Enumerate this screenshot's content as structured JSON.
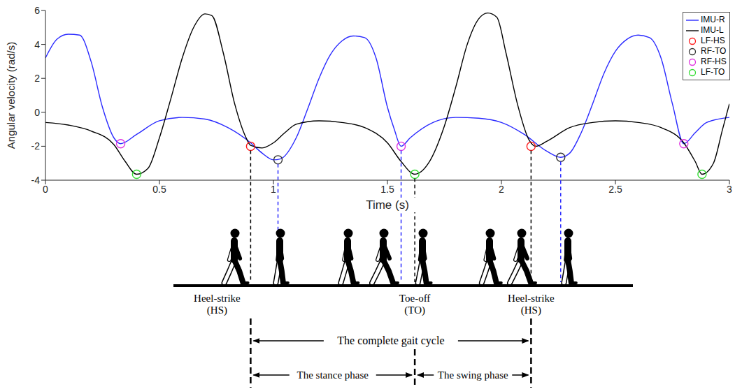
{
  "chart_data": {
    "type": "line",
    "x_label": "Time (s)",
    "y_label": "Angular velocity (rad/s)",
    "xlim": [
      0,
      3
    ],
    "xticks": [
      0,
      0.5,
      1,
      1.5,
      2,
      2.5,
      3
    ],
    "ylim": [
      -4,
      6
    ],
    "yticks": [
      -4,
      -2,
      0,
      2,
      4,
      6
    ],
    "grid": false,
    "legend": "upper right",
    "series": [
      {
        "name": "IMU-R",
        "color": "#2b2bff",
        "type": "line",
        "line_style": "solid",
        "x": [
          0,
          0.05,
          0.1,
          0.15,
          0.2,
          0.25,
          0.3,
          0.33,
          0.4,
          0.5,
          0.6,
          0.7,
          0.8,
          0.9,
          0.95,
          1.0,
          1.03,
          1.1,
          1.15,
          1.2,
          1.25,
          1.3,
          1.35,
          1.4,
          1.45,
          1.5,
          1.53,
          1.56,
          1.6,
          1.7,
          1.8,
          1.9,
          2.0,
          2.1,
          2.2,
          2.26,
          2.3,
          2.35,
          2.4,
          2.45,
          2.5,
          2.55,
          2.6,
          2.65,
          2.7,
          2.75,
          2.8,
          2.85,
          2.9,
          3.0
        ],
        "values": [
          3.2,
          4.3,
          4.6,
          4.55,
          3.0,
          0.3,
          -1.5,
          -1.85,
          -1.3,
          -0.5,
          -0.3,
          -0.4,
          -0.9,
          -1.8,
          -2.4,
          -2.8,
          -2.75,
          -1.5,
          0.2,
          2.0,
          3.4,
          4.2,
          4.5,
          4.4,
          3.2,
          0.3,
          -1.0,
          -2.0,
          -1.5,
          -0.6,
          -0.3,
          -0.35,
          -0.6,
          -1.3,
          -2.3,
          -2.65,
          -2.4,
          -1.2,
          0.5,
          2.3,
          3.6,
          4.3,
          4.55,
          4.4,
          3.2,
          0.5,
          -1.85,
          -1.2,
          -0.6,
          -0.3
        ]
      },
      {
        "name": "IMU-L",
        "color": "#000000",
        "type": "line",
        "line_style": "solid",
        "x": [
          0,
          0.1,
          0.2,
          0.3,
          0.35,
          0.4,
          0.45,
          0.5,
          0.55,
          0.6,
          0.65,
          0.7,
          0.73,
          0.78,
          0.83,
          0.88,
          0.9,
          0.95,
          1.0,
          1.05,
          1.1,
          1.2,
          1.3,
          1.4,
          1.5,
          1.56,
          1.62,
          1.68,
          1.75,
          1.8,
          1.85,
          1.9,
          1.94,
          1.98,
          2.02,
          2.07,
          2.12,
          2.15,
          2.2,
          2.3,
          2.4,
          2.5,
          2.6,
          2.7,
          2.8,
          2.85,
          2.88,
          2.93,
          2.97,
          3.0
        ],
        "values": [
          -0.6,
          -0.75,
          -1.1,
          -1.9,
          -2.9,
          -3.65,
          -3.3,
          -1.5,
          0.8,
          3.2,
          5.0,
          5.8,
          5.7,
          3.5,
          0.5,
          -1.5,
          -1.95,
          -2.1,
          -1.8,
          -1.2,
          -0.7,
          -0.5,
          -0.6,
          -0.9,
          -1.8,
          -2.9,
          -3.65,
          -3.0,
          -0.8,
          1.5,
          4.0,
          5.5,
          5.85,
          5.6,
          3.5,
          0.5,
          -1.6,
          -2.0,
          -1.7,
          -0.9,
          -0.6,
          -0.5,
          -0.6,
          -0.9,
          -1.8,
          -2.9,
          -3.65,
          -3.0,
          -1.0,
          0.5
        ]
      },
      {
        "name": "LF-HS",
        "color": "#ff1a1a",
        "type": "scatter",
        "marker": "circle",
        "x": [
          0.9,
          2.13
        ],
        "values": [
          -2.0,
          -2.0
        ]
      },
      {
        "name": "RF-TO",
        "color": "#333333",
        "type": "scatter",
        "marker": "circle",
        "x": [
          1.02,
          2.26
        ],
        "values": [
          -2.8,
          -2.65
        ]
      },
      {
        "name": "RF-HS",
        "color": "#e033e0",
        "type": "scatter",
        "marker": "circle",
        "x": [
          0.33,
          1.56,
          2.8
        ],
        "values": [
          -1.85,
          -2.0,
          -1.85
        ]
      },
      {
        "name": "LF-TO",
        "color": "#33dd33",
        "type": "scatter",
        "marker": "circle",
        "x": [
          0.4,
          1.62,
          2.88
        ],
        "values": [
          -3.65,
          -3.65,
          -3.65
        ]
      }
    ]
  },
  "diagram": {
    "events": [
      {
        "label": "Heel-strike",
        "abbr": "(HS)"
      },
      {
        "label": "Toe-off",
        "abbr": "(TO)"
      },
      {
        "label": "Heel-strike",
        "abbr": "(HS)"
      }
    ],
    "phases": {
      "cycle": "The complete gait cycle",
      "stance": "The stance phase",
      "swing": "The swing phase"
    }
  }
}
